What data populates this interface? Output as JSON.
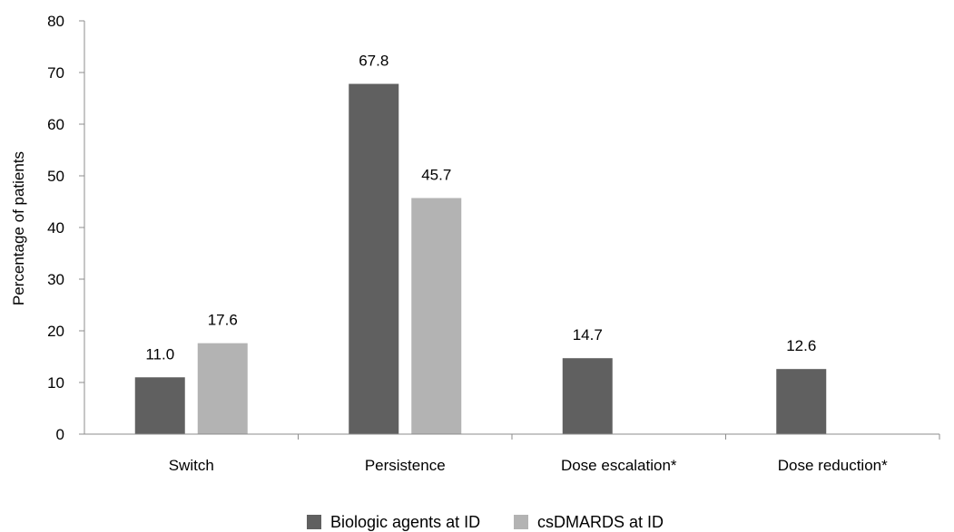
{
  "chart_data": {
    "type": "bar",
    "ylabel": "Percentage of patients",
    "ylim": [
      0,
      80
    ],
    "yticks": [
      0,
      10,
      20,
      30,
      40,
      50,
      60,
      70,
      80
    ],
    "categories": [
      "Switch",
      "Persistence",
      "Dose escalation*",
      "Dose reduction*"
    ],
    "series": [
      {
        "name": "Biologic agents at ID",
        "color": "#606060",
        "values": [
          11.0,
          67.8,
          14.7,
          12.6
        ]
      },
      {
        "name": "csDMARDS at ID",
        "color": "#b3b3b3",
        "values": [
          17.6,
          45.7,
          null,
          null
        ]
      }
    ],
    "value_labels": [
      [
        "11.0",
        "67.8",
        "14.7",
        "12.6"
      ],
      [
        "17.6",
        "45.7",
        "",
        ""
      ]
    ],
    "grid": false,
    "legend_position": "bottom"
  }
}
